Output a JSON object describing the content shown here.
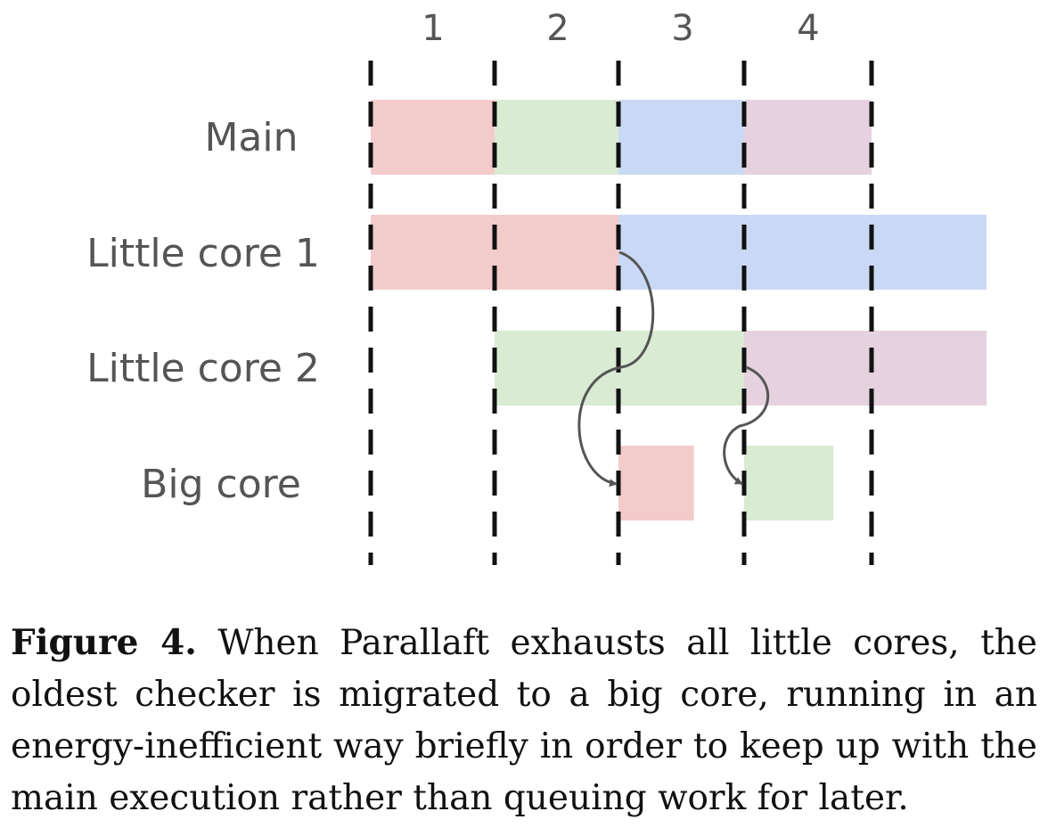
{
  "figure": {
    "columns": [
      "1",
      "2",
      "3",
      "4"
    ],
    "rows": [
      "Main",
      "Little core 1",
      "Little core 2",
      "Big core"
    ],
    "segment_colors": {
      "1": "#f3cbcb",
      "2": "#d9ebd3",
      "3": "#c9d9f5",
      "4": "#e6d2df"
    },
    "blocks": [
      {
        "row": "Main",
        "segment": "1",
        "start": 0,
        "end": 1
      },
      {
        "row": "Main",
        "segment": "2",
        "start": 1,
        "end": 2
      },
      {
        "row": "Main",
        "segment": "3",
        "start": 2,
        "end": 3
      },
      {
        "row": "Main",
        "segment": "4",
        "start": 3,
        "end": 4
      },
      {
        "row": "Little core 1",
        "segment": "1",
        "start": 0,
        "end": 2
      },
      {
        "row": "Little core 1",
        "segment": "3",
        "start": 2,
        "end": 5
      },
      {
        "row": "Little core 2",
        "segment": "2",
        "start": 1,
        "end": 3
      },
      {
        "row": "Little core 2",
        "segment": "4",
        "start": 3,
        "end": 5
      },
      {
        "row": "Big core",
        "segment": "1",
        "start": 2,
        "end": 2.6
      },
      {
        "row": "Big core",
        "segment": "2",
        "start": 3,
        "end": 3.7
      }
    ],
    "migrations": [
      {
        "from": "Little core 1",
        "to": "Big core",
        "segment": "1"
      },
      {
        "from": "Little core 2",
        "to": "Big core",
        "segment": "2"
      }
    ]
  },
  "caption": {
    "label": "Figure 4.",
    "text": "When Parallaft exhausts all little cores, the oldest checker is migrated to a big core, running in an energy-inefficient way briefly in order to keep up with the main execution rather than queuing work for later."
  }
}
